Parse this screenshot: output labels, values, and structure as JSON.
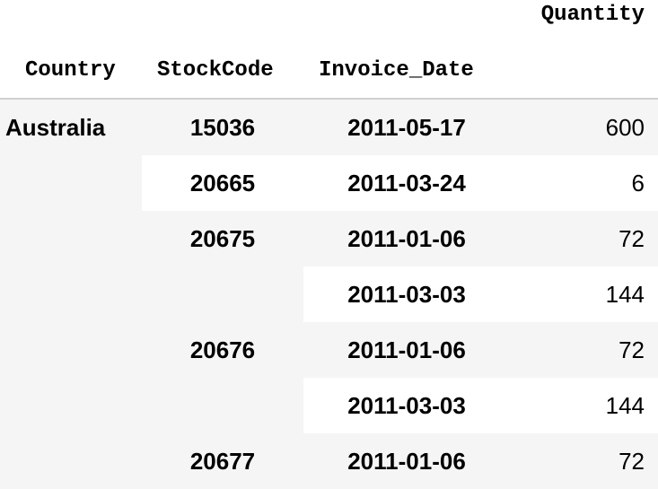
{
  "table": {
    "columns": {
      "quantity": "Quantity",
      "country": "Country",
      "stock_code": "StockCode",
      "invoice_date": "Invoice_Date"
    },
    "rows": [
      {
        "country": "Australia",
        "stock_code": "15036",
        "invoice_date": "2011-05-17",
        "quantity": "600"
      },
      {
        "country": "",
        "stock_code": "20665",
        "invoice_date": "2011-03-24",
        "quantity": "6"
      },
      {
        "country": "",
        "stock_code": "20675",
        "invoice_date": "2011-01-06",
        "quantity": "72"
      },
      {
        "country": "",
        "stock_code": "",
        "invoice_date": "2011-03-03",
        "quantity": "144"
      },
      {
        "country": "",
        "stock_code": "20676",
        "invoice_date": "2011-01-06",
        "quantity": "72"
      },
      {
        "country": "",
        "stock_code": "",
        "invoice_date": "2011-03-03",
        "quantity": "144"
      },
      {
        "country": "",
        "stock_code": "20677",
        "invoice_date": "2011-01-06",
        "quantity": "72"
      }
    ]
  },
  "colors": {
    "stripe": "#f5f5f5",
    "background": "#ffffff",
    "header_rule": "#cfcfcf"
  }
}
